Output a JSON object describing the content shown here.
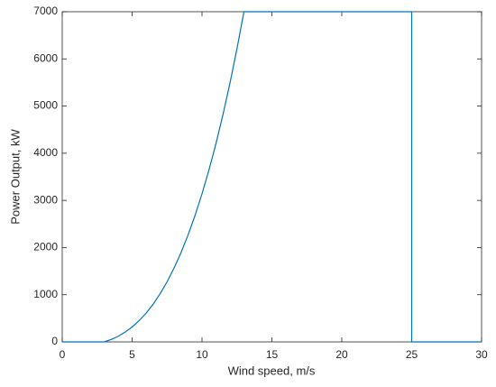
{
  "chart_data": {
    "type": "line",
    "x_label": "Wind speed, m/s",
    "y_label": "Power Output, kW",
    "x": [
      0,
      3,
      3.5,
      4,
      4.5,
      5,
      5.5,
      6,
      6.5,
      7,
      7.5,
      8,
      8.5,
      9,
      9.5,
      10,
      10.5,
      11,
      11.5,
      12,
      12.5,
      13,
      25,
      25,
      30
    ],
    "series": [
      {
        "color": "#0072bd",
        "values": [
          0,
          0,
          51,
          119,
          207,
          316,
          450,
          610,
          799,
          1019,
          1274,
          1565,
          1894,
          2265,
          2679,
          3139,
          3647,
          4207,
          4819,
          5487,
          6214,
          7000,
          7000,
          0,
          0
        ]
      }
    ],
    "xlim": [
      0,
      30
    ],
    "xticks": [
      0,
      5,
      10,
      15,
      20,
      25,
      30
    ],
    "ylim": [
      0,
      7000
    ],
    "yticks": [
      0,
      1000,
      2000,
      3000,
      4000,
      5000,
      6000,
      7000
    ],
    "grid": false
  }
}
